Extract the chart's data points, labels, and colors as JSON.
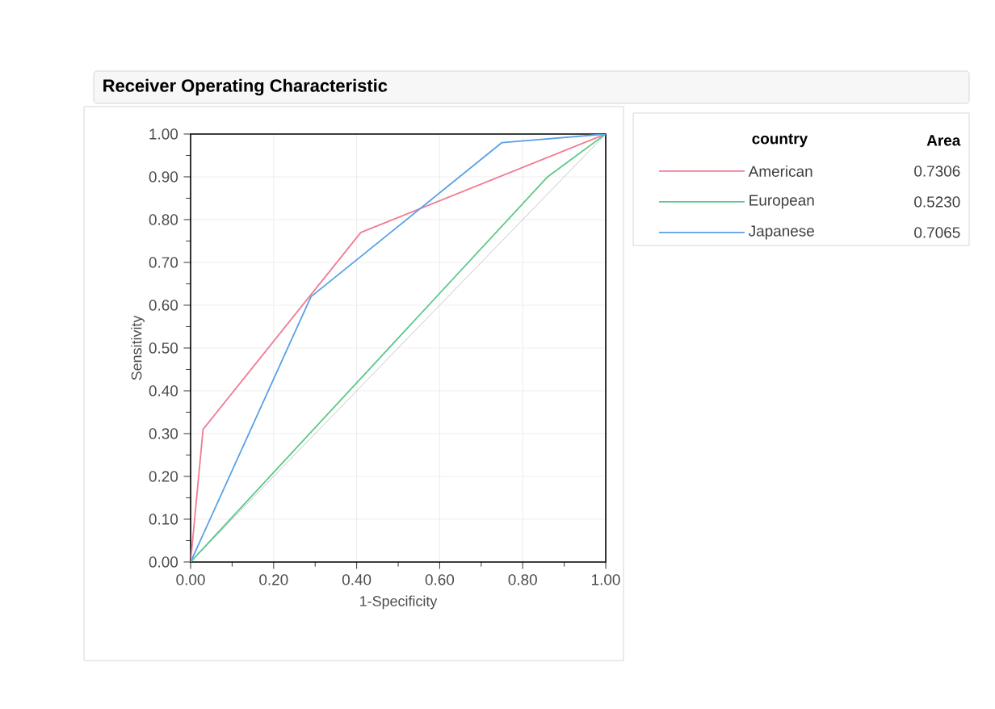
{
  "chart_data": {
    "type": "line",
    "title": "Receiver Operating Characteristic",
    "xlabel": "1-Specificity",
    "ylabel": "Sensitivity",
    "legend_title": "country",
    "annotations": [
      "Area",
      "0.7306",
      "0.5230",
      "0.7065"
    ],
    "series": [
      {
        "name": "American",
        "color": "#f07c94",
        "x": [
          0,
          0.03,
          0.41,
          1
        ],
        "values": [
          0,
          0.31,
          0.77,
          1
        ]
      },
      {
        "name": "European",
        "color": "#5cc98a",
        "x": [
          0,
          0.86,
          1
        ],
        "values": [
          0,
          0.9,
          1
        ]
      },
      {
        "name": "Japanese",
        "color": "#5aa0e6",
        "x": [
          0,
          0.29,
          0.75,
          1
        ],
        "values": [
          0,
          0.62,
          0.98,
          1
        ]
      },
      {
        "color": "#b8b8b8",
        "x": [
          0,
          1
        ],
        "values": [
          0,
          1
        ]
      }
    ],
    "xlim": [
      0,
      1
    ],
    "ylim": [
      0,
      1
    ],
    "xticks": [
      {
        "value": 0,
        "label": "0.00"
      },
      {
        "value": 0.2,
        "label": "0.20"
      },
      {
        "value": 0.4,
        "label": "0.40"
      },
      {
        "value": 0.6,
        "label": "0.60"
      },
      {
        "value": 0.8,
        "label": "0.80"
      },
      {
        "value": 1,
        "label": "1.00"
      }
    ],
    "yticks": [
      {
        "value": 0,
        "label": "0.00"
      },
      {
        "value": 0.1,
        "label": "0.10"
      },
      {
        "value": 0.2,
        "label": "0.20"
      },
      {
        "value": 0.3,
        "label": "0.30"
      },
      {
        "value": 0.4,
        "label": "0.40"
      },
      {
        "value": 0.5,
        "label": "0.50"
      },
      {
        "value": 0.6,
        "label": "0.60"
      },
      {
        "value": 0.7,
        "label": "0.70"
      },
      {
        "value": 0.8,
        "label": "0.80"
      },
      {
        "value": 0.9,
        "label": "0.90"
      },
      {
        "value": 1,
        "label": "1.00"
      }
    ],
    "grid": true,
    "legend": "right",
    "line_style": "solid",
    "marker": "none"
  }
}
